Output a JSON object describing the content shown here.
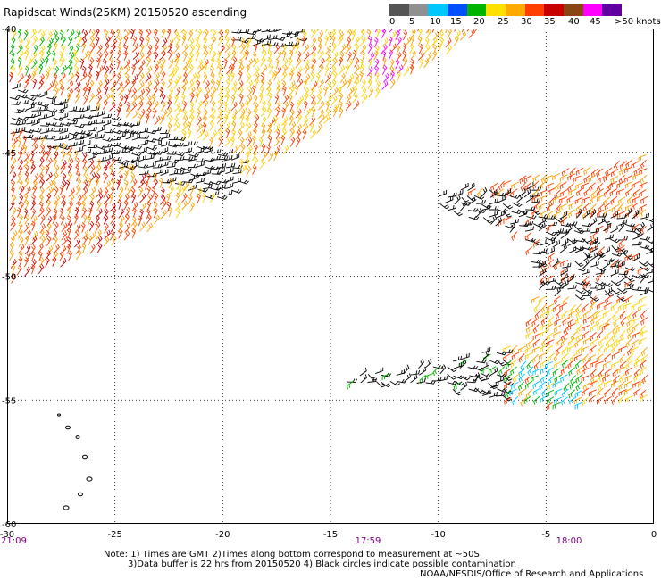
{
  "title": "Rapidscat Winds(25KM) 20150520 ascending",
  "legend": {
    "labels": [
      "0",
      "5",
      "10",
      "15",
      "20",
      "25",
      "30",
      "35",
      "40",
      "45",
      ">50 knots"
    ],
    "colors": [
      "#555555",
      "#909090",
      "#00c8ff",
      "#0050ff",
      "#00b400",
      "#ffe000",
      "#ffaa00",
      "#ff4000",
      "#c80000",
      "#8b4513",
      "#ff00ff",
      "#6000a0"
    ]
  },
  "chart_data": {
    "type": "map",
    "x_axis": {
      "ticks": [
        "-30",
        "-25",
        "-20",
        "-15",
        "-10",
        "-5",
        "0"
      ],
      "range": [
        -30,
        0
      ]
    },
    "y_axis": {
      "ticks": [
        "-40",
        "-45",
        "-50",
        "-55",
        "-60"
      ],
      "range": [
        -60,
        -40
      ]
    },
    "time_labels": [
      "21:09",
      "17:59",
      "18:00"
    ],
    "grid": true
  },
  "notes": {
    "line1": "Note: 1) Times are GMT 2)Times along bottom correspond to measurement at ~50S",
    "line2": "3)Data buffer is 22 hrs from 20150520 4) Black circles indicate possible contamination"
  },
  "credit": "NOAA/NESDIS/Office of Research and Applications"
}
